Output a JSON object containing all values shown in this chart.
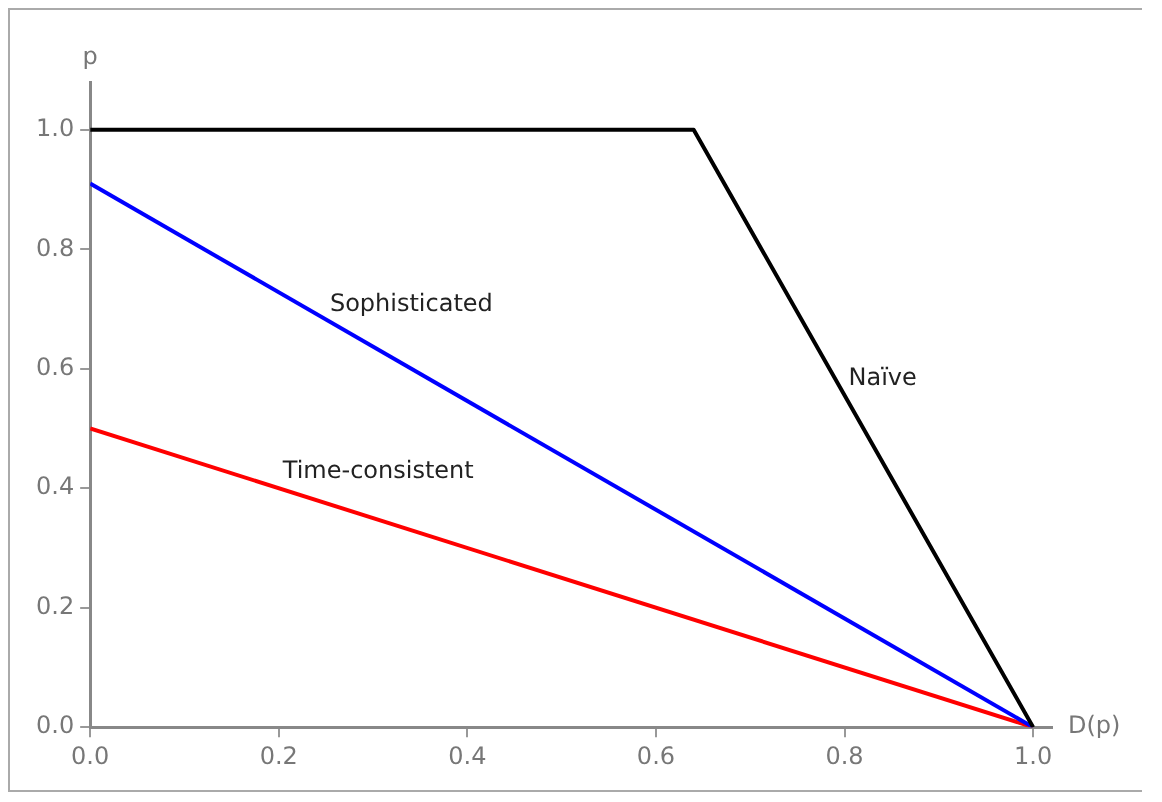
{
  "chart_data": {
    "type": "line",
    "xlabel": "D(p)",
    "ylabel": "p",
    "series": [
      {
        "color": "#000000",
        "x": [
          0,
          0.64,
          1
        ],
        "values": [
          1,
          1,
          0
        ]
      },
      {
        "color": "#0000ff",
        "x": [
          0,
          1
        ],
        "values": [
          0.91,
          0
        ]
      },
      {
        "color": "#ff0000",
        "x": [
          0,
          1
        ],
        "values": [
          0.5,
          0
        ]
      }
    ],
    "xlim": [
      0,
      1.02
    ],
    "xticks": [
      {
        "value": 0,
        "label": "0.0"
      },
      0.2,
      0.4,
      0.6,
      0.8,
      {
        "value": 1,
        "label": "1.0"
      }
    ],
    "ylim": [
      0,
      1.08
    ],
    "yticks": [
      {
        "value": 0,
        "label": "0.0"
      },
      0.2,
      0.4,
      0.6,
      0.8,
      {
        "value": 1,
        "label": "1.0"
      }
    ],
    "annotations": [
      {
        "text": "Sophisticated",
        "x": 0.25,
        "y": 0.68
      },
      {
        "text": "Naïve",
        "x": 0.8,
        "y": 0.556
      },
      {
        "text": "Time-consistent",
        "x": 0.2,
        "y": 0.4
      }
    ],
    "grid": false,
    "legend": false,
    "marker": "none",
    "line_style": "solid"
  }
}
